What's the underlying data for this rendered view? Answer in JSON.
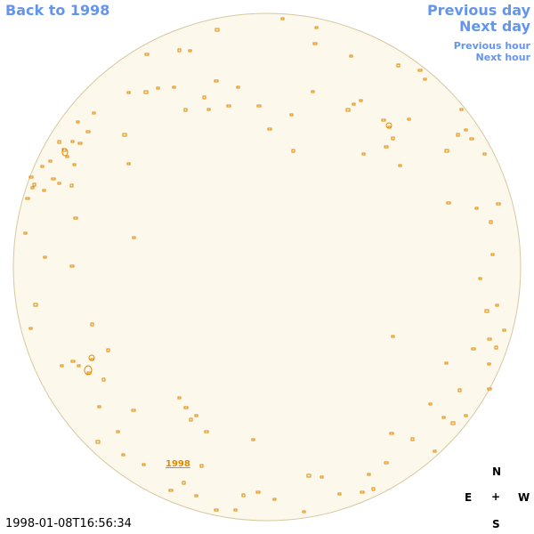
{
  "header": {
    "back": "Back to 1998",
    "previous_day": "Previous day",
    "next_day": "Next day",
    "previous_hour": "Previous hour",
    "next_hour": "Next hour"
  },
  "map": {
    "year_label": "1998",
    "compass": {
      "north": "N",
      "east": "E",
      "center": "+",
      "west": "W",
      "south": "S"
    }
  },
  "footer": {
    "timestamp": "1998-01-08T16:56:34"
  }
}
